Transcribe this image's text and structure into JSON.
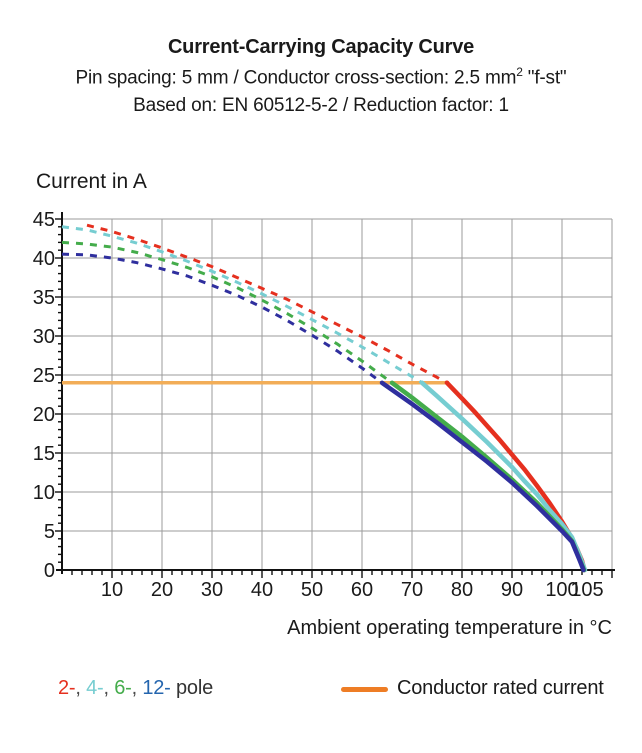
{
  "header": {
    "title": "Current-Carrying Capacity Curve",
    "subtitle_spec": {
      "pre": "Pin spacing: 5 mm / Conductor cross-section: 2.5 mm",
      "sup": "2",
      "post": " \"f-st\""
    },
    "subtitle_basis": "Based on: EN 60512-5-2 / Reduction factor: 1"
  },
  "chart_data": {
    "type": "line",
    "title": "Current-Carrying Capacity Curve",
    "xlabel": "Ambient operating temperature in °C",
    "ylabel": "Current in A",
    "xlim": [
      0,
      110
    ],
    "ylim": [
      0,
      45
    ],
    "x_ticks": [
      10,
      20,
      30,
      40,
      50,
      60,
      70,
      80,
      90,
      100,
      105
    ],
    "y_ticks": [
      0,
      5,
      10,
      15,
      20,
      25,
      30,
      35,
      40,
      45
    ],
    "grid": true,
    "grid_color": "#9b9b9b",
    "axis_color": "#111111",
    "rated_line": {
      "label": "Conductor rated current",
      "value": 24,
      "t_start": 0,
      "t_end": 77.4,
      "color": "#f2ad57"
    },
    "series": [
      {
        "name": "2-pole",
        "legend_label": "2-",
        "color": "#e5301f",
        "dashed": [
          [
            5,
            44.2
          ],
          [
            10,
            43.4
          ],
          [
            15,
            42.4
          ],
          [
            20,
            41.3
          ],
          [
            25,
            40.1
          ],
          [
            30,
            38.9
          ],
          [
            35,
            37.5
          ],
          [
            40,
            36.1
          ],
          [
            45,
            34.7
          ],
          [
            50,
            33.1
          ],
          [
            55,
            31.5
          ],
          [
            60,
            29.9
          ],
          [
            65,
            28.2
          ],
          [
            70,
            26.4
          ],
          [
            75,
            24.7
          ],
          [
            77,
            24
          ]
        ],
        "solid": [
          [
            77,
            24
          ],
          [
            80,
            22.0
          ],
          [
            82.5,
            20.3
          ],
          [
            85,
            18.5
          ],
          [
            87.5,
            16.7
          ],
          [
            90,
            14.8
          ],
          [
            92.5,
            12.9
          ],
          [
            95,
            10.8
          ],
          [
            97.5,
            8.6
          ],
          [
            100,
            6.2
          ],
          [
            101.5,
            4.6
          ],
          [
            103,
            2.7
          ],
          [
            104,
            1.2
          ],
          [
            104.5,
            0
          ]
        ]
      },
      {
        "name": "4-pole",
        "legend_label": "4-",
        "color": "#76cdd1",
        "dashed": [
          [
            0,
            44
          ],
          [
            5,
            43.6
          ],
          [
            10,
            42.8
          ],
          [
            15,
            41.9
          ],
          [
            20,
            40.8
          ],
          [
            25,
            39.6
          ],
          [
            30,
            38.3
          ],
          [
            35,
            36.9
          ],
          [
            40,
            35.4
          ],
          [
            45,
            33.8
          ],
          [
            50,
            32.1
          ],
          [
            55,
            30.4
          ],
          [
            60,
            28.6
          ],
          [
            65,
            26.7
          ],
          [
            70,
            24.8
          ],
          [
            72,
            24
          ]
        ],
        "solid": [
          [
            72,
            24
          ],
          [
            75,
            22.3
          ],
          [
            80,
            19.4
          ],
          [
            85,
            16.4
          ],
          [
            90,
            13.2
          ],
          [
            92.5,
            11.4
          ],
          [
            95,
            9.7
          ],
          [
            97.5,
            7.7
          ],
          [
            100,
            5.9
          ],
          [
            102,
            4.2
          ],
          [
            103.5,
            1.9
          ],
          [
            104.6,
            0
          ]
        ]
      },
      {
        "name": "6-pole",
        "legend_label": "6-",
        "color": "#44ac4b",
        "dashed": [
          [
            0,
            42
          ],
          [
            5,
            41.8
          ],
          [
            10,
            41.4
          ],
          [
            15,
            40.7
          ],
          [
            20,
            39.8
          ],
          [
            25,
            38.8
          ],
          [
            30,
            37.6
          ],
          [
            35,
            36.2
          ],
          [
            40,
            34.6
          ],
          [
            45,
            32.9
          ],
          [
            50,
            31.0
          ],
          [
            55,
            29.0
          ],
          [
            60,
            26.8
          ],
          [
            66,
            24
          ]
        ],
        "solid": [
          [
            66,
            24
          ],
          [
            70,
            22.1
          ],
          [
            75,
            19.6
          ],
          [
            80,
            17.1
          ],
          [
            85,
            14.4
          ],
          [
            90,
            11.6
          ],
          [
            95,
            8.6
          ],
          [
            100,
            5.2
          ],
          [
            102,
            3.7
          ],
          [
            103.5,
            1.4
          ],
          [
            104.4,
            0
          ]
        ]
      },
      {
        "name": "12-pole",
        "legend_label": "12-",
        "color": "#2f2f9e",
        "dashed": [
          [
            0,
            40.5
          ],
          [
            5,
            40.4
          ],
          [
            10,
            40.0
          ],
          [
            15,
            39.4
          ],
          [
            20,
            38.6
          ],
          [
            25,
            37.7
          ],
          [
            30,
            36.5
          ],
          [
            35,
            35.2
          ],
          [
            40,
            33.7
          ],
          [
            45,
            32.0
          ],
          [
            50,
            30.1
          ],
          [
            55,
            28.1
          ],
          [
            60,
            25.9
          ],
          [
            64,
            24
          ]
        ],
        "solid": [
          [
            64,
            24
          ],
          [
            70,
            21.3
          ],
          [
            75,
            18.9
          ],
          [
            80,
            16.4
          ],
          [
            85,
            13.9
          ],
          [
            90,
            11.2
          ],
          [
            95,
            8.2
          ],
          [
            100,
            5.0
          ],
          [
            102,
            3.6
          ],
          [
            103.5,
            1.3
          ],
          [
            104.3,
            0
          ]
        ]
      }
    ]
  },
  "legend": {
    "poles": [
      {
        "label": "2-",
        "color": "#e5301f"
      },
      {
        "label": "4-",
        "color": "#76cdd1"
      },
      {
        "label": "6-",
        "color": "#44ac4b"
      },
      {
        "label": "12-",
        "color": "#2465ae"
      }
    ],
    "separator": ", ",
    "pole_suffix": " pole",
    "rated_label": "Conductor rated current",
    "rated_swatch_color": "#ee7d25"
  }
}
